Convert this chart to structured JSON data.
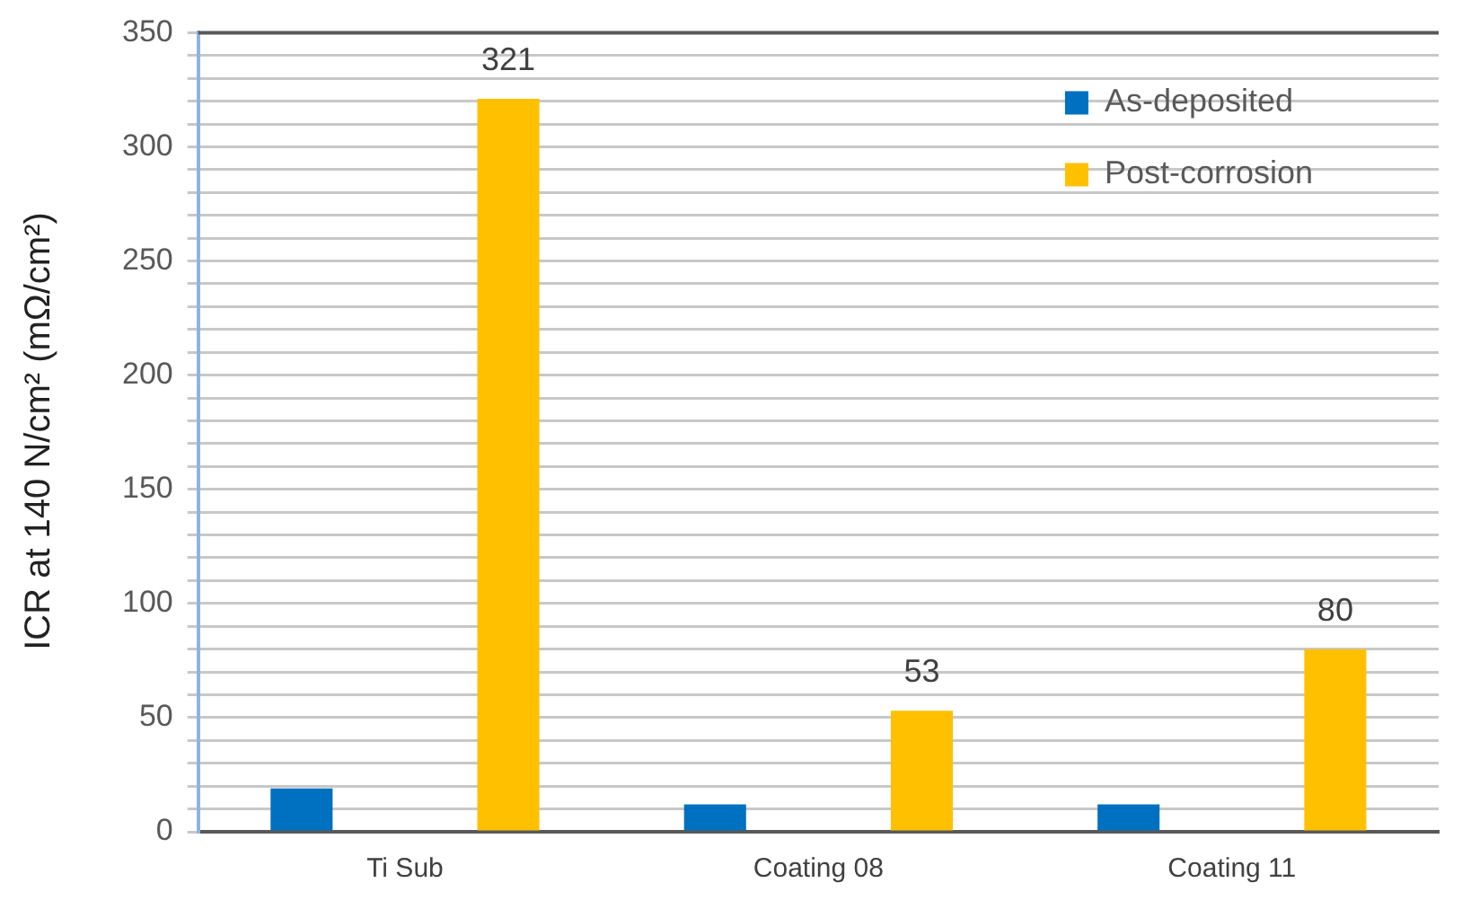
{
  "chart_data": {
    "type": "bar",
    "ylabel": "ICR at 140 N/cm² (mΩ/cm²)",
    "categories": [
      "Ti Sub",
      "Coating 08",
      "Coating 11"
    ],
    "series": [
      {
        "name": "As-deposited",
        "color": "#0070c0",
        "values": [
          19,
          12,
          12
        ]
      },
      {
        "name": "Post-corrosion",
        "color": "#ffc000",
        "values": [
          321,
          53,
          80
        ],
        "value_labels": [
          "321",
          "53",
          "80"
        ]
      }
    ],
    "ylim": [
      0,
      350
    ],
    "yticks": [
      0,
      {
        "value": 10,
        "label": null
      },
      {
        "value": 20,
        "label": null
      },
      {
        "value": 30,
        "label": null
      },
      {
        "value": 40,
        "label": null
      },
      50,
      {
        "value": 60,
        "label": null
      },
      {
        "value": 70,
        "label": null
      },
      {
        "value": 80,
        "label": null
      },
      {
        "value": 90,
        "label": null
      },
      100,
      {
        "value": 110,
        "label": null
      },
      {
        "value": 120,
        "label": null
      },
      {
        "value": 130,
        "label": null
      },
      {
        "value": 140,
        "label": null
      },
      150,
      {
        "value": 160,
        "label": null
      },
      {
        "value": 170,
        "label": null
      },
      {
        "value": 180,
        "label": null
      },
      {
        "value": 190,
        "label": null
      },
      200,
      {
        "value": 210,
        "label": null
      },
      {
        "value": 220,
        "label": null
      },
      {
        "value": 230,
        "label": null
      },
      {
        "value": 240,
        "label": null
      },
      250,
      {
        "value": 260,
        "label": null
      },
      {
        "value": 270,
        "label": null
      },
      {
        "value": 280,
        "label": null
      },
      {
        "value": 290,
        "label": null
      },
      300,
      {
        "value": 310,
        "label": null
      },
      {
        "value": 320,
        "label": null
      },
      {
        "value": 330,
        "label": null
      },
      {
        "value": 340,
        "label": null
      },
      350
    ],
    "grid": "y",
    "legend": "top right"
  }
}
